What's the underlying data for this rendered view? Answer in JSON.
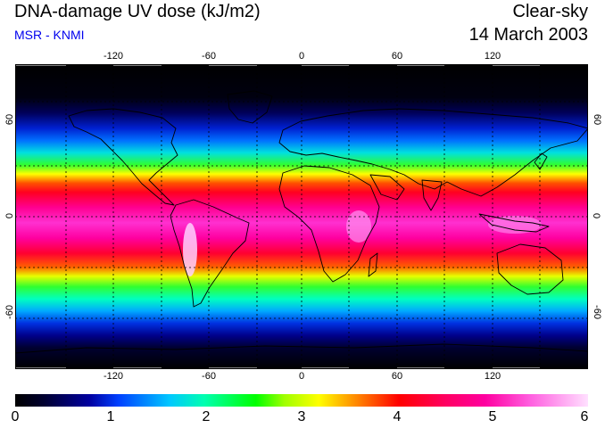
{
  "header": {
    "title": "DNA-damage UV dose (kJ/m2)",
    "subtitle": "MSR - KNMI",
    "condition": "Clear-sky",
    "date": "14 March 2003"
  },
  "map": {
    "lon_ticks": [
      "-120",
      "-60",
      "0",
      "60",
      "120"
    ],
    "lat_ticks": [
      "60",
      "0",
      "-60"
    ],
    "grid": true
  },
  "colorbar": {
    "ticks": [
      "0",
      "1",
      "2",
      "3",
      "4",
      "5",
      "6"
    ],
    "min": 0,
    "max": 6
  },
  "colors": {
    "subtitle": "#0000ee",
    "ocean_low": "#000000",
    "high": "#ffe0ff"
  }
}
